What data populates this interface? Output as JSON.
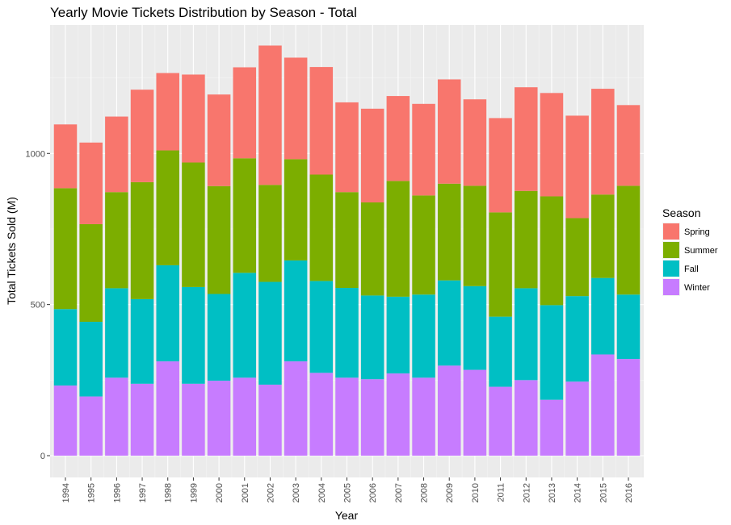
{
  "chart_data": {
    "type": "bar",
    "stacked": true,
    "title": "Yearly Movie Tickets Distribution by Season - Total",
    "xlabel": "Year",
    "ylabel": "Total Tickets Sold (M)",
    "ylim": [
      -72,
      1425
    ],
    "yticks": [
      0,
      500,
      1000
    ],
    "grid": true,
    "legend": {
      "title": "Season",
      "position": "right"
    },
    "categories": [
      "1994",
      "1995",
      "1996",
      "1997",
      "1998",
      "1999",
      "2000",
      "2001",
      "2002",
      "2003",
      "2004",
      "2005",
      "2006",
      "2007",
      "2008",
      "2009",
      "2010",
      "2011",
      "2012",
      "2013",
      "2014",
      "2015",
      "2016"
    ],
    "series": [
      {
        "name": "Winter",
        "color": "#C77CFF",
        "values": [
          232,
          196,
          258,
          238,
          312,
          238,
          248,
          258,
          235,
          312,
          274,
          258,
          253,
          272,
          258,
          298,
          284,
          228,
          250,
          185,
          245,
          335,
          320
        ]
      },
      {
        "name": "Fall",
        "color": "#00BFC4",
        "values": [
          253,
          247,
          296,
          280,
          318,
          320,
          287,
          347,
          340,
          334,
          304,
          297,
          277,
          254,
          275,
          282,
          277,
          232,
          304,
          313,
          283,
          253,
          213
        ]
      },
      {
        "name": "Summer",
        "color": "#7CAE00",
        "values": [
          400,
          323,
          318,
          387,
          380,
          412,
          357,
          379,
          321,
          335,
          352,
          317,
          308,
          383,
          328,
          320,
          332,
          345,
          322,
          360,
          258,
          276,
          360
        ]
      },
      {
        "name": "Spring",
        "color": "#F8766D",
        "values": [
          211,
          270,
          250,
          306,
          256,
          291,
          303,
          301,
          461,
          336,
          356,
          297,
          310,
          281,
          303,
          345,
          286,
          312,
          343,
          342,
          339,
          350,
          267
        ]
      }
    ],
    "legend_order": [
      "Spring",
      "Summer",
      "Fall",
      "Winter"
    ]
  }
}
